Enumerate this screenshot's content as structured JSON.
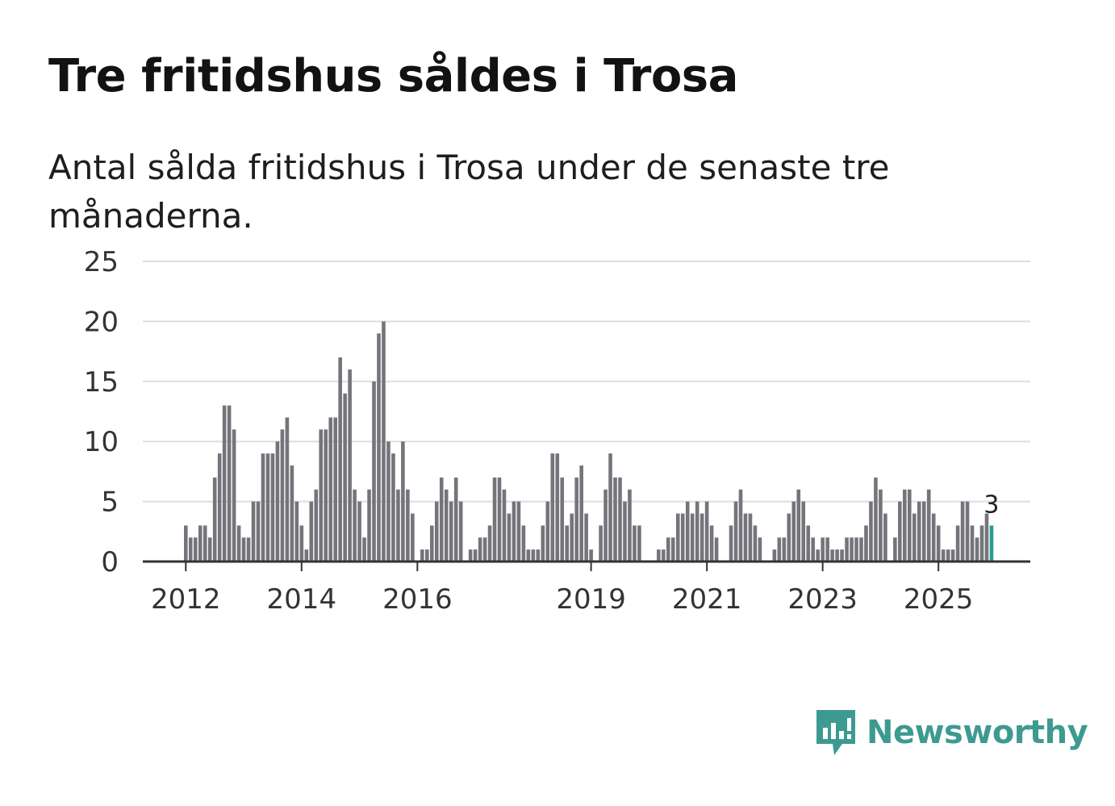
{
  "header": {
    "title": "Tre fritidshus såldes i Trosa",
    "subtitle": "Antal sålda fritidshus i Trosa under de senaste tre månaderna."
  },
  "brand": {
    "name": "Newsworthy",
    "icon": "newsworthy-logo-icon",
    "color": "#3d9a91"
  },
  "colors": {
    "bar": "#75747b",
    "highlight": "#2a9d8f",
    "grid": "#dddddd",
    "axis": "#333333"
  },
  "chart_data": {
    "type": "bar",
    "title": "Tre fritidshus såldes i Trosa",
    "subtitle": "Antal sålda fritidshus i Trosa under de senaste tre månaderna.",
    "xlabel": "",
    "ylabel": "",
    "ylim": [
      0,
      25
    ],
    "yticks": [
      0,
      5,
      10,
      15,
      20,
      25
    ],
    "start_month": "2012-01",
    "xticks": [
      {
        "label": "2012",
        "index": 0
      },
      {
        "label": "2014",
        "index": 24
      },
      {
        "label": "2016",
        "index": 48
      },
      {
        "label": "2019",
        "index": 84
      },
      {
        "label": "2021",
        "index": 108
      },
      {
        "label": "2023",
        "index": 132
      },
      {
        "label": "2025",
        "index": 156
      }
    ],
    "values": [
      3,
      2,
      2,
      3,
      3,
      2,
      7,
      9,
      13,
      13,
      11,
      3,
      2,
      2,
      5,
      5,
      9,
      9,
      9,
      10,
      11,
      12,
      8,
      5,
      3,
      1,
      5,
      6,
      11,
      11,
      12,
      12,
      17,
      14,
      16,
      6,
      5,
      2,
      6,
      15,
      19,
      20,
      10,
      9,
      6,
      10,
      6,
      4,
      0,
      1,
      1,
      3,
      5,
      7,
      6,
      5,
      7,
      5,
      0,
      1,
      1,
      2,
      2,
      3,
      7,
      7,
      6,
      4,
      5,
      5,
      3,
      1,
      1,
      1,
      3,
      5,
      9,
      9,
      7,
      3,
      4,
      7,
      8,
      4,
      1,
      0,
      3,
      6,
      9,
      7,
      7,
      5,
      6,
      3,
      3,
      0,
      0,
      0,
      1,
      1,
      2,
      2,
      4,
      4,
      5,
      4,
      5,
      4,
      5,
      3,
      2,
      0,
      0,
      3,
      5,
      6,
      4,
      4,
      3,
      2,
      0,
      0,
      1,
      2,
      2,
      4,
      5,
      6,
      5,
      3,
      2,
      1,
      2,
      2,
      1,
      1,
      1,
      2,
      2,
      2,
      2,
      3,
      5,
      7,
      6,
      4,
      0,
      2,
      5,
      6,
      6,
      4,
      5,
      5,
      6,
      4,
      3,
      1,
      1,
      1,
      3,
      5,
      5,
      3,
      2,
      3,
      4,
      3
    ],
    "highlight": {
      "index": 167,
      "value": 3,
      "label": "3"
    }
  }
}
